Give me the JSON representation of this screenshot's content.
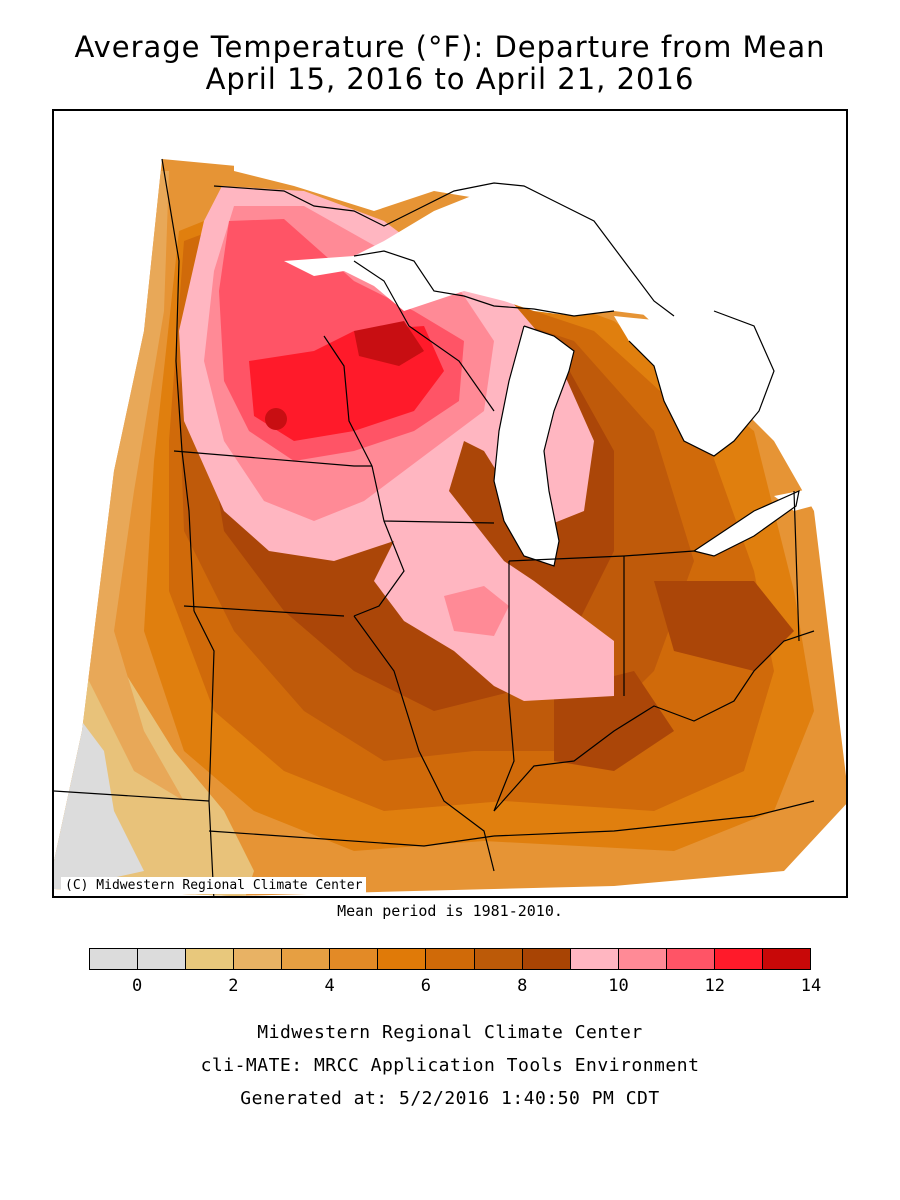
{
  "title": {
    "line1": "Average Temperature (°F): Departure from Mean",
    "line2": "April 15, 2016 to April 21, 2016"
  },
  "map": {
    "copyright": "(C) Midwestern Regional Climate Center",
    "mean_note": "Mean period is 1981-2010.",
    "region": "Midwest (MN, WI, MI, IA, IL, IN, OH, MO, KY)",
    "colors": {
      "lake": "#ffffff",
      "cold_edge": "#dcdcdc",
      "c1": "#e8c27a",
      "c2": "#e8a858",
      "c3": "#e69435",
      "c4": "#e07f0e",
      "c5": "#d06a0a",
      "c6": "#bf5a0a",
      "c7": "#ab4608",
      "w1": "#ffb6c1",
      "w2": "#ff8a96",
      "w3": "#ff5466",
      "w4": "#ff1a2a",
      "w5": "#c80e12"
    }
  },
  "legend": {
    "colors": [
      "#dcdcdc",
      "#dcdcdc",
      "#e8c87c",
      "#e8b264",
      "#e69f42",
      "#e38a26",
      "#e07a08",
      "#d06a08",
      "#bc5a08",
      "#a84404",
      "#ffb6c1",
      "#ff8a96",
      "#ff5466",
      "#ff1a2a",
      "#c80808"
    ],
    "ticks": [
      "0",
      "2",
      "4",
      "6",
      "8",
      "10",
      "12",
      "14"
    ]
  },
  "footer": {
    "line1": "Midwestern Regional Climate Center",
    "line2": "cli-MATE: MRCC Application Tools Environment",
    "line3": "Generated at: 5/2/2016 1:40:50 PM CDT"
  }
}
